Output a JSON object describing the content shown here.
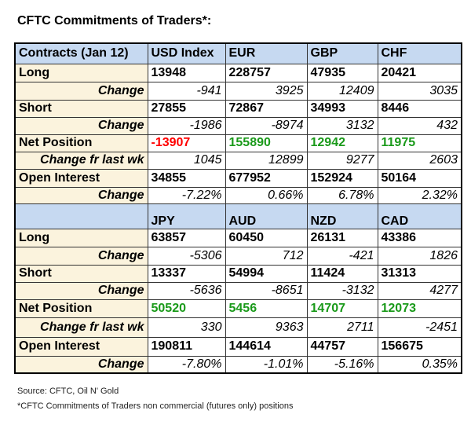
{
  "title": "CFTC Commitments of Traders*:",
  "colors": {
    "header_bg": "#c6d9f1",
    "label_bg": "#fbf3dd",
    "negative": "#ff0000",
    "positive": "#1a9a1a"
  },
  "sections": [
    {
      "header_label": "Contracts (Jan 12)",
      "columns": [
        "USD Index",
        "EUR",
        "GBP",
        "CHF"
      ],
      "rows": [
        {
          "label": "Long",
          "type": "main",
          "values": [
            "13948",
            "228757",
            "47935",
            "20421"
          ]
        },
        {
          "label": "Change",
          "type": "chg",
          "values": [
            "-941",
            "3925",
            "12409",
            "3035"
          ]
        },
        {
          "label": "Short",
          "type": "main",
          "values": [
            "27855",
            "72867",
            "34993",
            "8446"
          ]
        },
        {
          "label": "Change",
          "type": "chg",
          "values": [
            "-1986",
            "-8974",
            "3132",
            "432"
          ]
        },
        {
          "label": "Net Position",
          "type": "net",
          "values": [
            "-13907",
            "155890",
            "12942",
            "11975"
          ]
        },
        {
          "label": "Change fr last wk",
          "type": "chg",
          "values": [
            "1045",
            "12899",
            "9277",
            "2603"
          ]
        },
        {
          "label": "Open Interest",
          "type": "main",
          "values": [
            "34855",
            "677952",
            "152924",
            "50164"
          ]
        },
        {
          "label": "Change",
          "type": "chg",
          "values": [
            "-7.22%",
            "0.66%",
            "6.78%",
            "2.32%"
          ]
        }
      ]
    },
    {
      "header_label": "",
      "columns": [
        "JPY",
        "AUD",
        "NZD",
        "CAD"
      ],
      "rows": [
        {
          "label": "Long",
          "type": "main",
          "values": [
            "63857",
            "60450",
            "26131",
            "43386"
          ]
        },
        {
          "label": "Change",
          "type": "chg",
          "values": [
            "-5306",
            "712",
            "-421",
            "1826"
          ]
        },
        {
          "label": "Short",
          "type": "main",
          "values": [
            "13337",
            "54994",
            "11424",
            "31313"
          ]
        },
        {
          "label": "Change",
          "type": "chg",
          "values": [
            "-5636",
            "-8651",
            "-3132",
            "4277"
          ]
        },
        {
          "label": "Net Position",
          "type": "net",
          "values": [
            "50520",
            "5456",
            "14707",
            "12073"
          ]
        },
        {
          "label": "Change fr last wk",
          "type": "chg",
          "values": [
            "330",
            "9363",
            "2711",
            "-2451"
          ]
        },
        {
          "label": "Open Interest",
          "type": "main",
          "values": [
            "190811",
            "144614",
            "44757",
            "156675"
          ]
        },
        {
          "label": "Change",
          "type": "chg",
          "values": [
            "-7.80%",
            "-1.01%",
            "-5.16%",
            "0.35%"
          ]
        }
      ]
    }
  ],
  "footer": {
    "source": "Source: CFTC, Oil N' Gold",
    "note": "*CFTC Commitments of Traders non commercial (futures only) positions"
  }
}
